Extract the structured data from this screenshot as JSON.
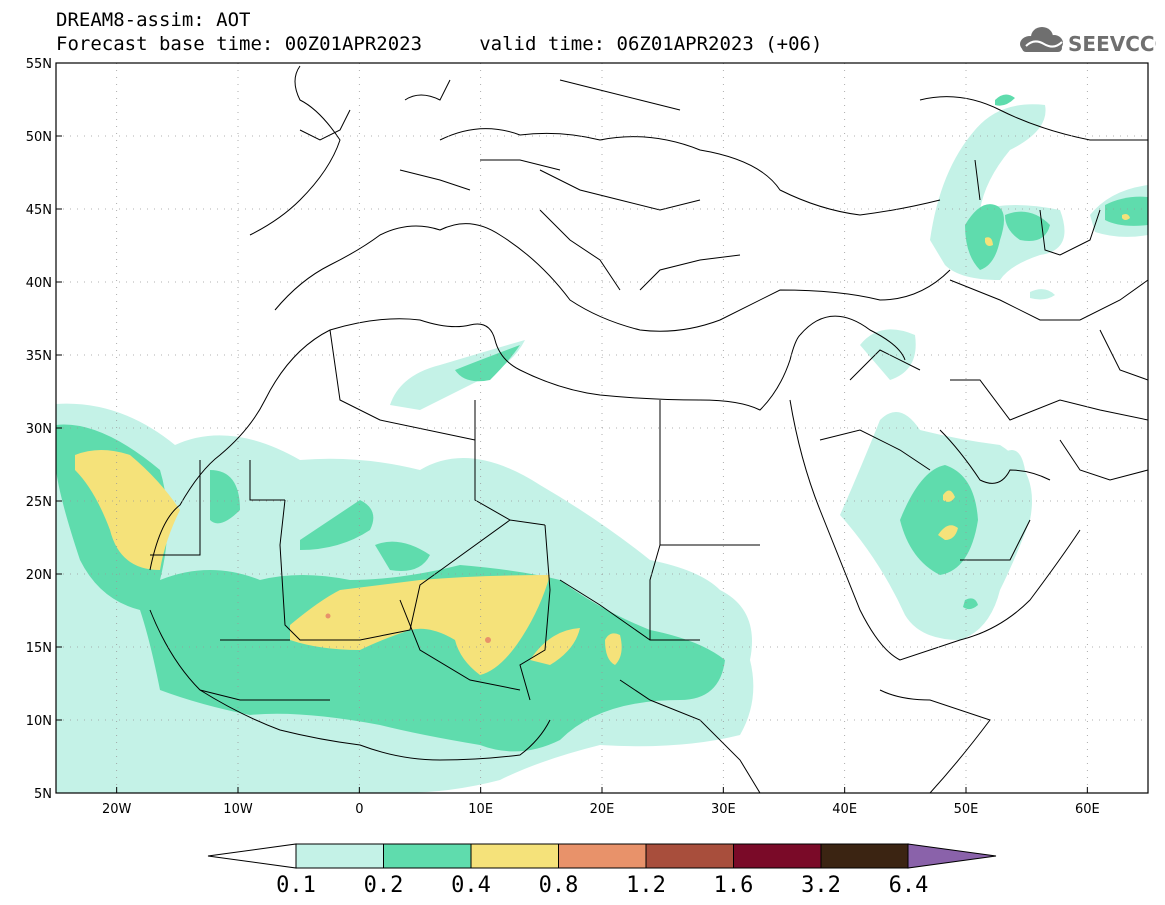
{
  "header": {
    "line1": "DREAM8-assim: AOT",
    "line2": "Forecast base time: 00Z01APR2023     valid time: 06Z01APR2023 (+06)",
    "logo_text": "SEEVCCC"
  },
  "map": {
    "lon_range": [
      -25,
      65
    ],
    "lat_range": [
      5,
      55
    ],
    "y_ticks": [
      {
        "lat": 55,
        "label": "55N"
      },
      {
        "lat": 50,
        "label": "50N"
      },
      {
        "lat": 45,
        "label": "45N"
      },
      {
        "lat": 40,
        "label": "40N"
      },
      {
        "lat": 35,
        "label": "35N"
      },
      {
        "lat": 30,
        "label": "30N"
      },
      {
        "lat": 25,
        "label": "25N"
      },
      {
        "lat": 20,
        "label": "20N"
      },
      {
        "lat": 15,
        "label": "15N"
      },
      {
        "lat": 10,
        "label": "10N"
      },
      {
        "lat": 5,
        "label": "5N"
      }
    ],
    "x_ticks": [
      {
        "lon": -20,
        "label": "20W"
      },
      {
        "lon": -10,
        "label": "10W"
      },
      {
        "lon": 0,
        "label": "0"
      },
      {
        "lon": 10,
        "label": "10E"
      },
      {
        "lon": 20,
        "label": "20E"
      },
      {
        "lon": 30,
        "label": "30E"
      },
      {
        "lon": 40,
        "label": "40E"
      },
      {
        "lon": 50,
        "label": "50E"
      },
      {
        "lon": 60,
        "label": "60E"
      }
    ]
  },
  "colorbar": {
    "labels": [
      "0.1",
      "0.2",
      "0.4",
      "0.8",
      "1.2",
      "1.6",
      "3.2",
      "6.4"
    ],
    "colors": [
      "#c4f2e7",
      "#5fdcad",
      "#f5e27a",
      "#e8926a",
      "#a84e3c",
      "#7a0a28",
      "#3b2412",
      "#8a62aa"
    ]
  }
}
